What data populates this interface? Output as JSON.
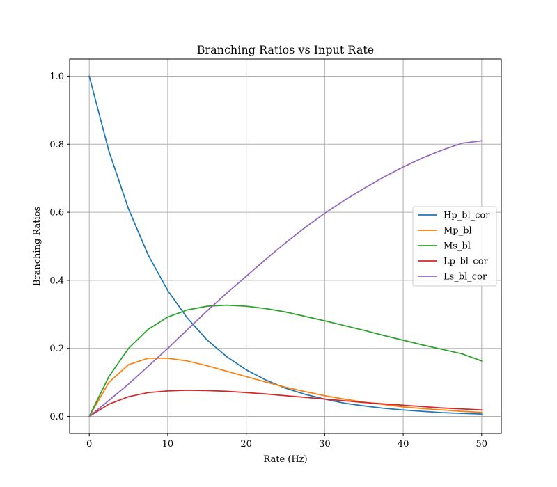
{
  "chart_data": {
    "type": "line",
    "title": "Branching Ratios vs Input Rate",
    "xlabel": "Rate (Hz)",
    "ylabel": "Branching Ratios",
    "xlim": [
      -2.5,
      52.5
    ],
    "ylim": [
      -0.05,
      1.05
    ],
    "xticks": [
      0,
      10,
      20,
      30,
      40,
      50
    ],
    "yticks": [
      0.0,
      0.2,
      0.4,
      0.6,
      0.8,
      1.0
    ],
    "xtick_labels": [
      "0",
      "10",
      "20",
      "30",
      "40",
      "50"
    ],
    "ytick_labels": [
      "0.0",
      "0.2",
      "0.4",
      "0.6",
      "0.8",
      "1.0"
    ],
    "grid": true,
    "legend_position": "center-right",
    "x": [
      0,
      2.5,
      5,
      7.5,
      10,
      12.5,
      15,
      17.5,
      20,
      22.5,
      25,
      27.5,
      30,
      32.5,
      35,
      37.5,
      40,
      42.5,
      45,
      47.5,
      50
    ],
    "series": [
      {
        "name": "Hp_bl_cor",
        "color": "#1f77b4",
        "values": [
          1.0,
          0.78,
          0.61,
          0.475,
          0.37,
          0.289,
          0.225,
          0.176,
          0.137,
          0.107,
          0.083,
          0.065,
          0.051,
          0.039,
          0.031,
          0.024,
          0.019,
          0.015,
          0.011,
          0.009,
          0.007
        ]
      },
      {
        "name": "Mp_bl",
        "color": "#ff7f0e",
        "values": [
          0.0,
          0.1,
          0.152,
          0.171,
          0.171,
          0.163,
          0.149,
          0.133,
          0.117,
          0.101,
          0.086,
          0.073,
          0.061,
          0.051,
          0.042,
          0.035,
          0.028,
          0.023,
          0.019,
          0.015,
          0.012
        ]
      },
      {
        "name": "Ms_bl",
        "color": "#2ca02c",
        "values": [
          0.0,
          0.117,
          0.2,
          0.256,
          0.292,
          0.313,
          0.324,
          0.327,
          0.324,
          0.317,
          0.307,
          0.294,
          0.281,
          0.267,
          0.253,
          0.238,
          0.224,
          0.21,
          0.197,
          0.184,
          0.163
        ]
      },
      {
        "name": "Lp_bl_cor",
        "color": "#d62728",
        "values": [
          0.0,
          0.036,
          0.058,
          0.07,
          0.075,
          0.077,
          0.076,
          0.074,
          0.07,
          0.066,
          0.061,
          0.056,
          0.051,
          0.046,
          0.041,
          0.037,
          0.033,
          0.029,
          0.025,
          0.022,
          0.019
        ]
      },
      {
        "name": "Ls_bl_cor",
        "color": "#9467bd",
        "values": [
          0.0,
          0.047,
          0.095,
          0.147,
          0.2,
          0.255,
          0.31,
          0.362,
          0.412,
          0.462,
          0.51,
          0.555,
          0.597,
          0.635,
          0.67,
          0.703,
          0.733,
          0.76,
          0.783,
          0.803,
          0.81
        ]
      }
    ]
  }
}
